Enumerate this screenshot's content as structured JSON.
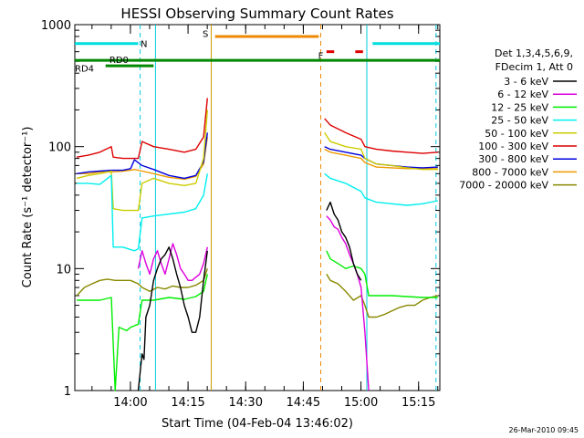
{
  "chart_data": {
    "type": "line",
    "title": "HESSI Observing Summary Count Rates",
    "xlabel": "Start Time (04-Feb-04 13:46:02)",
    "ylabel": "Count Rate (s⁻¹ detector⁻¹)",
    "yscale": "log",
    "ylim": [
      1,
      1000
    ],
    "xlim_minutes": [
      -0.5,
      94.5
    ],
    "yticks": [
      "1",
      "10",
      "100",
      "1000"
    ],
    "xticks": [
      {
        "label": "14:00",
        "t": 13.97
      },
      {
        "label": "14:15",
        "t": 28.97
      },
      {
        "label": "14:30",
        "t": 43.97
      },
      {
        "label": "14:45",
        "t": 58.97
      },
      {
        "label": "15:00",
        "t": 73.97
      },
      {
        "label": "15:15",
        "t": 88.97
      }
    ],
    "legend_header": [
      "Det 1,3,4,5,6,9,",
      "FDecim 1, Att 0"
    ],
    "timestamp": "26-Mar-2010 09:45",
    "gaps_minutes": [
      [
        34.5,
        64.5
      ]
    ],
    "series": [
      {
        "name": "3 - 6 keV",
        "color": "#000000",
        "points": [
          [
            16,
            1
          ],
          [
            17,
            2
          ],
          [
            17.5,
            1.8
          ],
          [
            18,
            4
          ],
          [
            19,
            5
          ],
          [
            20,
            8
          ],
          [
            21,
            10
          ],
          [
            22,
            12
          ],
          [
            23,
            13
          ],
          [
            24,
            15
          ],
          [
            25,
            12
          ],
          [
            26,
            9
          ],
          [
            27,
            7
          ],
          [
            28,
            5
          ],
          [
            29,
            4
          ],
          [
            30,
            3
          ],
          [
            31,
            3
          ],
          [
            32,
            4
          ],
          [
            33,
            8
          ],
          [
            34,
            14
          ],
          [
            65,
            30
          ],
          [
            66,
            35
          ],
          [
            67,
            28
          ],
          [
            68,
            25
          ],
          [
            69,
            20
          ],
          [
            70,
            18
          ],
          [
            71,
            15
          ],
          [
            72,
            11
          ],
          [
            73,
            9
          ],
          [
            74,
            8
          ]
        ]
      },
      {
        "name": "6 - 12 keV",
        "color": "#dd00dd",
        "points": [
          [
            16,
            10
          ],
          [
            17,
            14
          ],
          [
            18,
            11
          ],
          [
            19,
            9
          ],
          [
            20,
            12
          ],
          [
            21,
            14
          ],
          [
            22,
            11
          ],
          [
            23,
            9
          ],
          [
            24,
            12
          ],
          [
            25,
            16
          ],
          [
            26,
            13
          ],
          [
            27,
            10
          ],
          [
            28,
            9
          ],
          [
            29,
            8
          ],
          [
            30,
            8
          ],
          [
            31,
            8.5
          ],
          [
            32,
            9
          ],
          [
            33,
            11
          ],
          [
            34,
            15
          ],
          [
            65,
            27
          ],
          [
            66,
            25
          ],
          [
            67,
            22
          ],
          [
            68,
            21
          ],
          [
            69,
            18
          ],
          [
            70,
            16
          ],
          [
            71,
            13
          ],
          [
            72,
            11
          ],
          [
            73,
            9
          ],
          [
            74,
            7
          ],
          [
            75,
            3
          ],
          [
            76,
            1
          ]
        ]
      },
      {
        "name": "12 - 25 keV",
        "color": "#00ee00",
        "points": [
          [
            0,
            5.5
          ],
          [
            3,
            5.5
          ],
          [
            6,
            5.5
          ],
          [
            9,
            5.8
          ],
          [
            10,
            1
          ],
          [
            11,
            3.3
          ],
          [
            12,
            3.2
          ],
          [
            13,
            3.1
          ],
          [
            14,
            3.3
          ],
          [
            15,
            3.4
          ],
          [
            16,
            3.5
          ],
          [
            17,
            5.5
          ],
          [
            20,
            5.5
          ],
          [
            24,
            5.8
          ],
          [
            28,
            5.6
          ],
          [
            31,
            5.9
          ],
          [
            33,
            6.5
          ],
          [
            34,
            9
          ],
          [
            65,
            14
          ],
          [
            66,
            12
          ],
          [
            68,
            11
          ],
          [
            70,
            10
          ],
          [
            72,
            10.5
          ],
          [
            74,
            10
          ],
          [
            75,
            9
          ],
          [
            76,
            6
          ],
          [
            78,
            6
          ],
          [
            82,
            6
          ],
          [
            86,
            5.9
          ],
          [
            90,
            5.8
          ],
          [
            94,
            5.8
          ]
        ]
      },
      {
        "name": "25 - 50 keV",
        "color": "#00eeee",
        "points": [
          [
            0,
            50
          ],
          [
            3,
            50
          ],
          [
            6,
            49
          ],
          [
            9,
            58
          ],
          [
            9.5,
            15
          ],
          [
            12,
            15
          ],
          [
            15,
            14
          ],
          [
            16,
            14.5
          ],
          [
            17,
            26
          ],
          [
            20,
            27
          ],
          [
            24,
            28
          ],
          [
            28,
            29
          ],
          [
            31,
            31
          ],
          [
            33,
            40
          ],
          [
            34,
            60
          ],
          [
            64.5,
            60
          ],
          [
            66,
            55
          ],
          [
            70,
            50
          ],
          [
            74,
            43
          ],
          [
            75,
            38
          ],
          [
            78,
            35
          ],
          [
            82,
            34
          ],
          [
            86,
            33
          ],
          [
            90,
            34
          ],
          [
            94,
            36
          ]
        ]
      },
      {
        "name": "50 - 100 keV",
        "color": "#cccc00",
        "points": [
          [
            0,
            55
          ],
          [
            3,
            58
          ],
          [
            6,
            60
          ],
          [
            9,
            63
          ],
          [
            9.5,
            31
          ],
          [
            12,
            30
          ],
          [
            15,
            30
          ],
          [
            16,
            30
          ],
          [
            17,
            50
          ],
          [
            20,
            55
          ],
          [
            24,
            50
          ],
          [
            28,
            48
          ],
          [
            31,
            50
          ],
          [
            33,
            80
          ],
          [
            34,
            200
          ],
          [
            64.5,
            130
          ],
          [
            66,
            110
          ],
          [
            70,
            100
          ],
          [
            74,
            95
          ],
          [
            75,
            80
          ],
          [
            78,
            72
          ],
          [
            82,
            70
          ],
          [
            86,
            67
          ],
          [
            90,
            65
          ],
          [
            94,
            65
          ]
        ]
      },
      {
        "name": "100 - 300 keV",
        "color": "#dd0000",
        "points": [
          [
            0,
            82
          ],
          [
            3,
            85
          ],
          [
            6,
            90
          ],
          [
            9,
            100
          ],
          [
            9.5,
            82
          ],
          [
            12,
            80
          ],
          [
            16,
            80
          ],
          [
            17,
            110
          ],
          [
            20,
            100
          ],
          [
            24,
            95
          ],
          [
            28,
            90
          ],
          [
            31,
            95
          ],
          [
            33,
            120
          ],
          [
            34,
            250
          ],
          [
            64.5,
            170
          ],
          [
            66,
            150
          ],
          [
            70,
            130
          ],
          [
            74,
            115
          ],
          [
            75,
            100
          ],
          [
            78,
            95
          ],
          [
            82,
            92
          ],
          [
            86,
            90
          ],
          [
            90,
            88
          ],
          [
            94,
            90
          ]
        ]
      },
      {
        "name": "300 - 800 keV",
        "color": "#0000dd",
        "points": [
          [
            0,
            60
          ],
          [
            3,
            62
          ],
          [
            6,
            63
          ],
          [
            9,
            64
          ],
          [
            12,
            64
          ],
          [
            14,
            66
          ],
          [
            15,
            78
          ],
          [
            17,
            70
          ],
          [
            20,
            65
          ],
          [
            24,
            58
          ],
          [
            28,
            55
          ],
          [
            31,
            58
          ],
          [
            33,
            75
          ],
          [
            34,
            130
          ],
          [
            64.5,
            100
          ],
          [
            66,
            95
          ],
          [
            70,
            90
          ],
          [
            74,
            85
          ],
          [
            75,
            80
          ],
          [
            78,
            72
          ],
          [
            82,
            70
          ],
          [
            86,
            68
          ],
          [
            90,
            67
          ],
          [
            94,
            68
          ]
        ]
      },
      {
        "name": "800 - 7000 keV",
        "color": "#ee9900",
        "points": [
          [
            0,
            60
          ],
          [
            3,
            60
          ],
          [
            6,
            62
          ],
          [
            9,
            62
          ],
          [
            12,
            63
          ],
          [
            14,
            64
          ],
          [
            15,
            65
          ],
          [
            17,
            63
          ],
          [
            20,
            60
          ],
          [
            24,
            56
          ],
          [
            28,
            54
          ],
          [
            31,
            57
          ],
          [
            33,
            72
          ],
          [
            34,
            120
          ],
          [
            64.5,
            95
          ],
          [
            66,
            90
          ],
          [
            70,
            85
          ],
          [
            74,
            80
          ],
          [
            75,
            74
          ],
          [
            78,
            68
          ],
          [
            82,
            67
          ],
          [
            86,
            66
          ],
          [
            90,
            66
          ],
          [
            94,
            67
          ]
        ]
      },
      {
        "name": "7000 - 20000 keV",
        "color": "#888800",
        "points": [
          [
            0,
            6
          ],
          [
            2,
            7
          ],
          [
            4,
            7.5
          ],
          [
            6,
            8
          ],
          [
            8,
            8.2
          ],
          [
            10,
            8
          ],
          [
            12,
            8
          ],
          [
            14,
            8
          ],
          [
            16,
            7.5
          ],
          [
            17,
            7
          ],
          [
            19,
            6.5
          ],
          [
            21,
            7
          ],
          [
            23,
            6.8
          ],
          [
            25,
            7.2
          ],
          [
            27,
            7
          ],
          [
            29,
            7
          ],
          [
            31,
            7.3
          ],
          [
            33,
            8
          ],
          [
            34,
            10
          ],
          [
            65,
            9
          ],
          [
            66,
            8
          ],
          [
            68,
            7.5
          ],
          [
            70,
            6.5
          ],
          [
            72,
            5.5
          ],
          [
            74,
            6
          ],
          [
            75,
            5
          ],
          [
            76,
            4
          ],
          [
            78,
            4
          ],
          [
            80,
            4.2
          ],
          [
            82,
            4.5
          ],
          [
            84,
            4.8
          ],
          [
            86,
            5
          ],
          [
            88,
            5
          ],
          [
            90,
            5.5
          ],
          [
            92,
            5.8
          ],
          [
            94,
            6
          ]
        ]
      }
    ],
    "annotations": {
      "flag_labels": [
        {
          "text": "N",
          "t": 17.5,
          "level": 700,
          "color": "#00cccc"
        },
        {
          "text": "S",
          "t": 33.5,
          "level": 850,
          "color": "#ee8800"
        },
        {
          "text": "F",
          "t": 63.5,
          "level": 560,
          "color": "#dd0000"
        },
        {
          "text": "RD0",
          "t": 11,
          "level": 520,
          "color": "#008800"
        },
        {
          "text": "RD4",
          "t": 2,
          "level": 440,
          "color": "#008800"
        }
      ],
      "flag_bars": [
        {
          "name": "N",
          "color": "#00dddd",
          "y": 700,
          "segments": [
            [
              -0.5,
              16
            ],
            [
              77,
              94.5
            ]
          ]
        },
        {
          "name": "S",
          "color": "#ee8800",
          "y": 800,
          "segments": [
            [
              36,
              63
            ]
          ]
        },
        {
          "name": "F",
          "color": "#dd0000",
          "y": 600,
          "segments": [
            [
              65,
              67
            ],
            [
              72.5,
              74.5
            ]
          ]
        },
        {
          "name": "RD0",
          "color": "#008800",
          "y": 510,
          "segments": [
            [
              -0.5,
              94.5
            ]
          ]
        },
        {
          "name": "RD4",
          "color": "#008800",
          "y": 460,
          "segments": [
            [
              7.5,
              20
            ]
          ]
        }
      ],
      "vertical_lines": [
        {
          "t": 16.5,
          "color": "#00ccdd",
          "style": "dashed"
        },
        {
          "t": 20.5,
          "color": "#00ccdd",
          "style": "solid"
        },
        {
          "t": 35,
          "color": "#cc9900",
          "style": "solid"
        },
        {
          "t": 63.5,
          "color": "#ee8800",
          "style": "dashed"
        },
        {
          "t": 75.5,
          "color": "#00ccdd",
          "style": "solid"
        },
        {
          "t": 93.5,
          "color": "#00ccdd",
          "style": "dashed"
        }
      ]
    }
  }
}
